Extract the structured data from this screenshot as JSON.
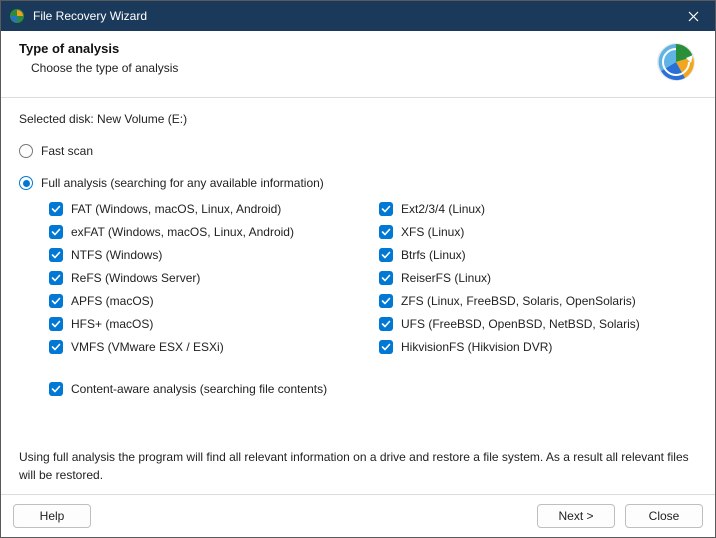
{
  "colors": {
    "titlebar_bg": "#1b3a5b",
    "accent": "#0078d4",
    "border": "#dcdcdc",
    "text": "#222222"
  },
  "titlebar": {
    "title": "File Recovery Wizard"
  },
  "header": {
    "title": "Type of analysis",
    "subtitle": "Choose the type of analysis"
  },
  "selected_disk_label": "Selected disk: New Volume (E:)",
  "radios": {
    "fast": {
      "label": "Fast scan",
      "selected": false
    },
    "full": {
      "label": "Full analysis (searching for any available information)",
      "selected": true
    }
  },
  "filesystems": {
    "left": [
      {
        "label": "FAT (Windows, macOS, Linux, Android)",
        "checked": true
      },
      {
        "label": "exFAT (Windows, macOS, Linux, Android)",
        "checked": true
      },
      {
        "label": "NTFS (Windows)",
        "checked": true
      },
      {
        "label": "ReFS (Windows Server)",
        "checked": true
      },
      {
        "label": "APFS (macOS)",
        "checked": true
      },
      {
        "label": "HFS+ (macOS)",
        "checked": true
      },
      {
        "label": "VMFS (VMware ESX / ESXi)",
        "checked": true
      }
    ],
    "right": [
      {
        "label": "Ext2/3/4 (Linux)",
        "checked": true
      },
      {
        "label": "XFS (Linux)",
        "checked": true
      },
      {
        "label": "Btrfs (Linux)",
        "checked": true
      },
      {
        "label": "ReiserFS (Linux)",
        "checked": true
      },
      {
        "label": "ZFS (Linux, FreeBSD, Solaris, OpenSolaris)",
        "checked": true
      },
      {
        "label": "UFS (FreeBSD, OpenBSD, NetBSD, Solaris)",
        "checked": true
      },
      {
        "label": "HikvisionFS (Hikvision DVR)",
        "checked": true
      }
    ]
  },
  "content_aware": {
    "label": "Content-aware analysis (searching file contents)",
    "checked": true
  },
  "description": "Using full analysis the program will find all relevant information on a drive and restore a file system. As a result all relevant files will be restored.",
  "footer": {
    "help": "Help",
    "next": "Next >",
    "close": "Close"
  }
}
